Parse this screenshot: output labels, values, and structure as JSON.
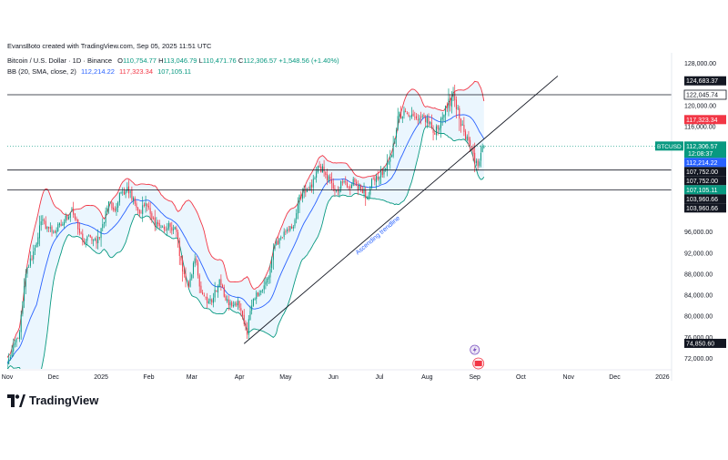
{
  "header": {
    "creator": "EvansBoto created with TradingView.com, Sep 05, 2025 11:51 UTC",
    "symbol": "Bitcoin / U.S. Dollar · 1D · Binance",
    "ohlc": {
      "o_label": "O",
      "o": "110,754.77",
      "h_label": "H",
      "h": "113,046.79",
      "l_label": "L",
      "l": "110,471.76",
      "c_label": "C",
      "c": "112,306.57",
      "change": "+1,548.56 (+1.40%)"
    },
    "bb": {
      "label": "BB (20, SMA, close, 2)",
      "mid": "112,214.22",
      "upper": "117,323.34",
      "lower": "107,105.11"
    }
  },
  "colors": {
    "up": "#089981",
    "down": "#f23645",
    "basis": "#2962ff",
    "upper_band": "#f23645",
    "lower_band": "#089981",
    "band_fill": "#e3f2fd"
  },
  "branding": {
    "logo_text": "TradingView",
    "logo_icon": "tradingview-logo-icon"
  },
  "chart_data": {
    "type": "candlestick",
    "title": "Bitcoin / U.S. Dollar · 1D · Binance",
    "ylim": [
      70000,
      130000
    ],
    "y_ticks": [
      {
        "value": 128000,
        "label": "128,000.00"
      },
      {
        "value": 120000,
        "label": "120,000.00"
      },
      {
        "value": 116000,
        "label": "116,000.00"
      },
      {
        "value": 96000,
        "label": "96,000.00"
      },
      {
        "value": 92000,
        "label": "92,000.00"
      },
      {
        "value": 88000,
        "label": "88,000.00"
      },
      {
        "value": 84000,
        "label": "84,000.00"
      },
      {
        "value": 80000,
        "label": "80,000.00"
      },
      {
        "value": 76000,
        "label": "76,000.00"
      },
      {
        "value": 72000,
        "label": "72,000.00"
      }
    ],
    "x_ticks": [
      {
        "day": 0,
        "label": "Nov"
      },
      {
        "day": 30,
        "label": "Dec"
      },
      {
        "day": 61,
        "label": "2025"
      },
      {
        "day": 92,
        "label": "Feb"
      },
      {
        "day": 120,
        "label": "Mar"
      },
      {
        "day": 151,
        "label": "Apr"
      },
      {
        "day": 181,
        "label": "May"
      },
      {
        "day": 212,
        "label": "Jun"
      },
      {
        "day": 242,
        "label": "Jul"
      },
      {
        "day": 273,
        "label": "Aug"
      },
      {
        "day": 304,
        "label": "Sep"
      },
      {
        "day": 334,
        "label": "Oct"
      },
      {
        "day": 365,
        "label": "Nov"
      },
      {
        "day": 395,
        "label": "Dec"
      },
      {
        "day": 426,
        "label": "2026"
      }
    ],
    "x_range": [
      0,
      432
    ],
    "anchors": [
      [
        0,
        71000
      ],
      [
        8,
        77000
      ],
      [
        12,
        88000
      ],
      [
        18,
        93000
      ],
      [
        22,
        98000
      ],
      [
        26,
        97000
      ],
      [
        30,
        96000
      ],
      [
        36,
        97500
      ],
      [
        42,
        100500
      ],
      [
        46,
        96500
      ],
      [
        50,
        94000
      ],
      [
        54,
        95000
      ],
      [
        58,
        93800
      ],
      [
        62,
        97500
      ],
      [
        66,
        101800
      ],
      [
        70,
        100000
      ],
      [
        74,
        103500
      ],
      [
        78,
        104500
      ],
      [
        82,
        102500
      ],
      [
        86,
        99500
      ],
      [
        90,
        101500
      ],
      [
        94,
        98500
      ],
      [
        98,
        97500
      ],
      [
        102,
        96500
      ],
      [
        106,
        97000
      ],
      [
        110,
        96000
      ],
      [
        114,
        88500
      ],
      [
        118,
        85500
      ],
      [
        122,
        91000
      ],
      [
        126,
        84500
      ],
      [
        130,
        82500
      ],
      [
        134,
        83500
      ],
      [
        138,
        87000
      ],
      [
        142,
        83000
      ],
      [
        146,
        82000
      ],
      [
        150,
        83000
      ],
      [
        154,
        78500
      ],
      [
        156,
        76500
      ],
      [
        158,
        81000
      ],
      [
        162,
        84500
      ],
      [
        166,
        85000
      ],
      [
        170,
        87500
      ],
      [
        174,
        93500
      ],
      [
        178,
        95000
      ],
      [
        182,
        96500
      ],
      [
        186,
        97000
      ],
      [
        190,
        103000
      ],
      [
        194,
        103500
      ],
      [
        198,
        104500
      ],
      [
        202,
        108500
      ],
      [
        206,
        107500
      ],
      [
        210,
        106000
      ],
      [
        214,
        104000
      ],
      [
        218,
        105500
      ],
      [
        222,
        104500
      ],
      [
        226,
        105500
      ],
      [
        230,
        104000
      ],
      [
        234,
        102500
      ],
      [
        238,
        106000
      ],
      [
        242,
        106500
      ],
      [
        246,
        108000
      ],
      [
        250,
        110500
      ],
      [
        254,
        118000
      ],
      [
        258,
        119000
      ],
      [
        262,
        118000
      ],
      [
        266,
        117500
      ],
      [
        270,
        118000
      ],
      [
        274,
        116500
      ],
      [
        278,
        114500
      ],
      [
        282,
        117500
      ],
      [
        286,
        119500
      ],
      [
        290,
        122500
      ],
      [
        294,
        117500
      ],
      [
        298,
        113500
      ],
      [
        302,
        112000
      ],
      [
        304,
        109000
      ],
      [
        306,
        108500
      ],
      [
        308,
        111000
      ],
      [
        310,
        112306.57
      ]
    ],
    "bollinger": {
      "period": 20,
      "mult": 2,
      "basis_label": "112,214.22",
      "upper_label": "117,323.34",
      "lower_label": "107,105.11"
    },
    "horizontal_lines": [
      {
        "value": 122045.74,
        "label": "122,045.74"
      },
      {
        "value": 107752.0,
        "label": "107,752.00"
      },
      {
        "value": 103960.66,
        "label": "103,960.66"
      }
    ],
    "price_labels": [
      {
        "value": 124683.37,
        "label": "124,683.37",
        "style": "dark"
      },
      {
        "value": 122045.74,
        "label": "122,045.74",
        "style": "outline"
      },
      {
        "value": 117323.34,
        "label": "117,323.34",
        "style": "red"
      },
      {
        "value": 112306.57,
        "label": "112,306.57",
        "style": "teal",
        "symbol": "BTCUSD",
        "countdown": "12:08:37"
      },
      {
        "value": 112214.22,
        "label": "112,214.22",
        "style": "blue"
      },
      {
        "value": 107752.0,
        "label": "107,752.00",
        "style": "dark"
      },
      {
        "value": 107752.0,
        "label": "107,752.00",
        "style": "dark"
      },
      {
        "value": 107105.11,
        "label": "107,105.11",
        "style": "teal"
      },
      {
        "value": 103960.66,
        "label": "103,960.66",
        "style": "dark"
      },
      {
        "value": 103960.66,
        "label": "103,960.66",
        "style": "dark"
      },
      {
        "value": 74850.6,
        "label": "74,850.60",
        "style": "dark"
      }
    ],
    "trendline": {
      "start": [
        154,
        74800
      ],
      "end": [
        358,
        125600
      ],
      "label": "Ascending trendline"
    }
  }
}
